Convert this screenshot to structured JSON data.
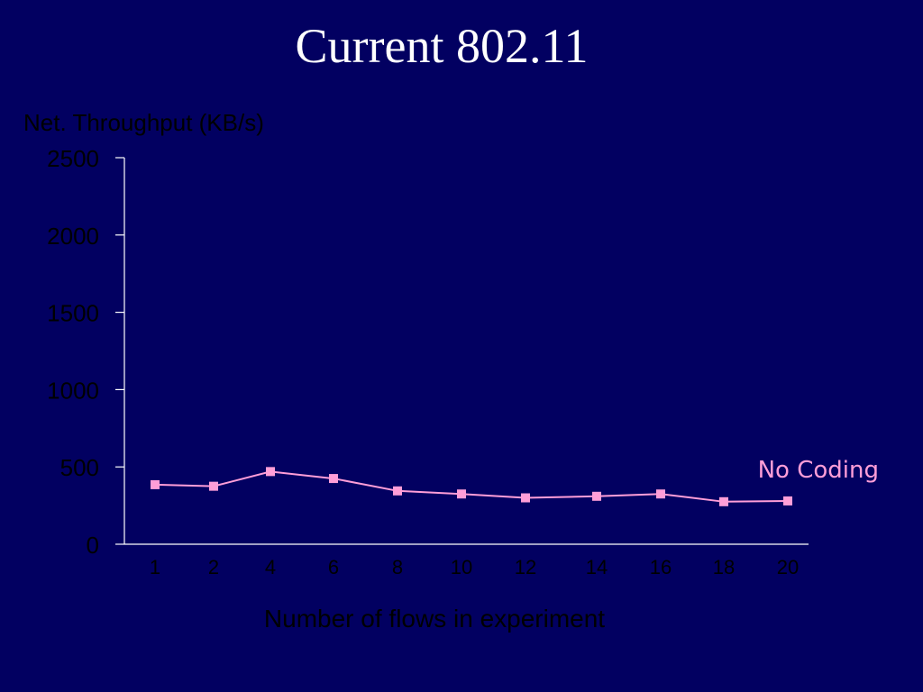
{
  "slide": {
    "title": "Current 802.11"
  },
  "colors": {
    "background": "#020061",
    "title_text": "#ffffff",
    "axis_text": "#000000",
    "axis_line": "#ffffff",
    "series_line": "#ff9ed8",
    "series_marker": "#ff9ed8",
    "annotation_text": "#ff9ed8"
  },
  "chart_data": {
    "type": "line",
    "title": "",
    "xlabel": "Number of flows in experiment",
    "ylabel": "Net. Throughput (KB/s)",
    "categories": [
      "1",
      "2",
      "4",
      "6",
      "8",
      "10",
      "12",
      "14",
      "16",
      "18",
      "20"
    ],
    "ylim": [
      0,
      2500
    ],
    "yticks": [
      0,
      500,
      1000,
      1500,
      2000,
      2500
    ],
    "grid": false,
    "legend": "none",
    "series": [
      {
        "name": "No Coding",
        "marker": "square",
        "values": [
          385,
          375,
          470,
          425,
          345,
          325,
          300,
          310,
          325,
          275,
          280
        ]
      }
    ]
  }
}
